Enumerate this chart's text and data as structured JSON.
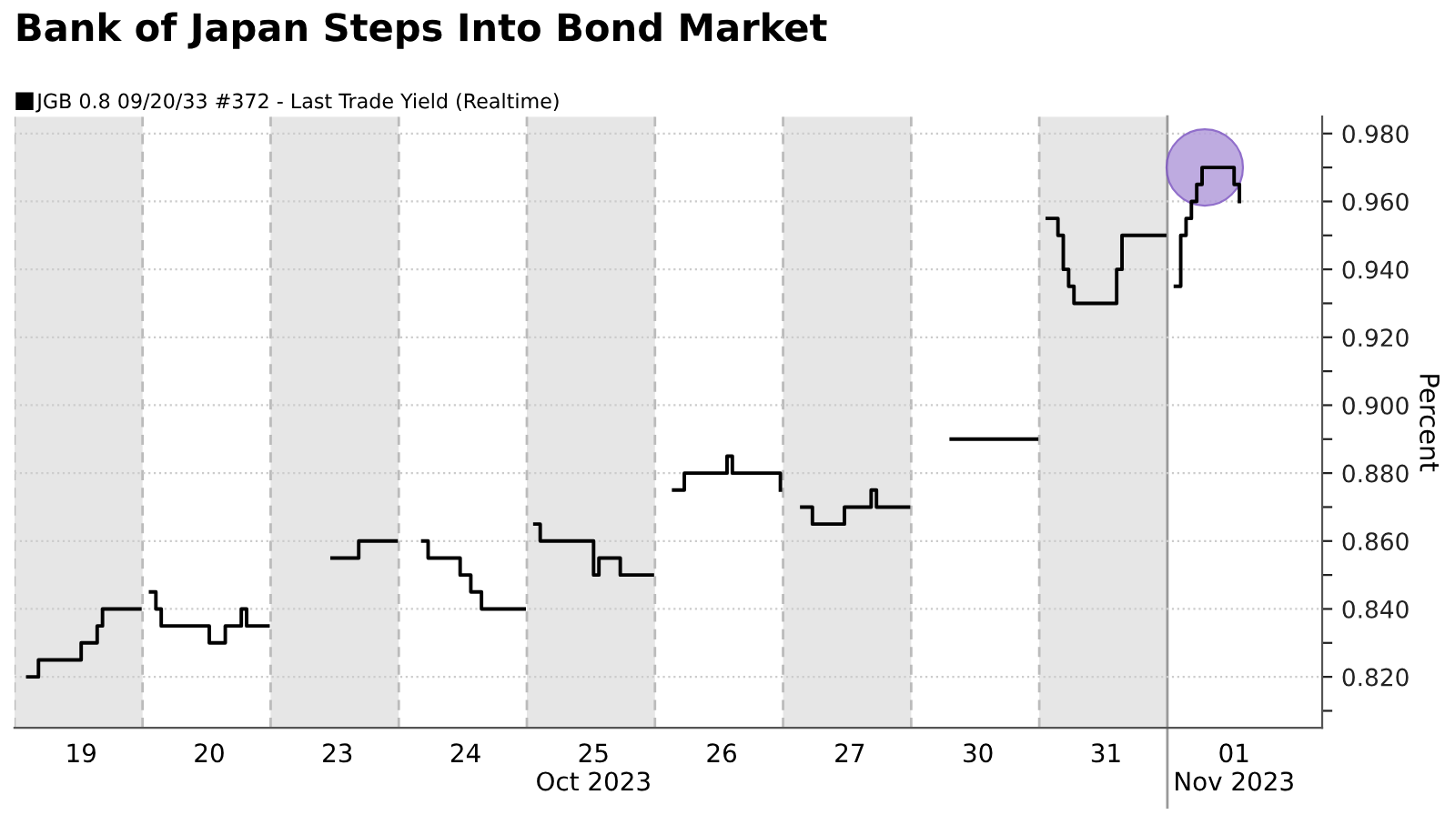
{
  "chart_data": {
    "type": "step",
    "title": "Bank of Japan Steps Into Bond Market",
    "ylabel": "Percent",
    "legend": "top left",
    "grid": "y",
    "line_style": "solid",
    "categories": [
      null,
      null,
      null,
      null,
      null,
      null,
      null,
      null,
      null,
      null,
      null,
      null,
      "19",
      null,
      null,
      null,
      null,
      null,
      null,
      null,
      null,
      null,
      null,
      null,
      null,
      null,
      null,
      null,
      null,
      null,
      null,
      null,
      null,
      null,
      null,
      null,
      "20",
      null,
      null,
      null,
      null,
      null,
      null,
      null,
      null,
      null,
      null,
      null,
      null,
      null,
      null,
      null,
      null,
      null,
      null,
      null,
      null,
      null,
      null,
      null,
      "23",
      null,
      null,
      null,
      null,
      null,
      null,
      null,
      null,
      null,
      null,
      null,
      null,
      null,
      null,
      null,
      null,
      null,
      null,
      null,
      null,
      null,
      null,
      null,
      "24",
      null,
      null,
      null,
      null,
      null,
      null,
      null,
      null,
      null,
      null,
      null,
      null,
      null,
      null,
      null,
      null,
      null,
      null,
      null,
      null,
      null,
      null,
      null,
      "25\nOct 2023",
      null,
      null,
      null,
      null,
      null,
      null,
      null,
      null,
      null,
      null,
      null,
      null,
      null,
      null,
      null,
      null,
      null,
      null,
      null,
      null,
      null,
      null,
      null,
      "26",
      null,
      null,
      null,
      null,
      null,
      null,
      null,
      null,
      null,
      null,
      null,
      null,
      null,
      null,
      null,
      null,
      null,
      null,
      null,
      null,
      null,
      null,
      null,
      "27",
      null,
      null,
      null,
      null,
      null,
      null,
      null,
      null,
      null,
      null,
      null,
      null,
      null,
      null,
      null,
      null,
      null,
      null,
      null,
      null,
      null,
      null,
      null,
      "30",
      null,
      null,
      null,
      null,
      null,
      null,
      null,
      null,
      null,
      null,
      null,
      null,
      null,
      null,
      null,
      null,
      null,
      null,
      null,
      null,
      null,
      null,
      null,
      "31",
      null,
      null,
      null,
      null,
      null,
      null,
      null,
      null,
      null,
      null,
      null,
      null,
      null,
      null,
      null,
      null,
      null,
      null,
      null,
      null,
      null,
      null,
      null,
      "01\nNov 2023",
      null,
      null,
      null,
      null,
      null,
      null,
      null,
      null,
      null,
      null,
      null,
      null,
      null,
      null,
      null,
      null
    ],
    "series": [
      {
        "name": "JGB 0.8 09/20/33 #372 - Last Trade Yield (Realtime)",
        "color": "#000000",
        "values": [
          null,
          null,
          0.82,
          0.82,
          0.825,
          0.825,
          0.825,
          0.825,
          0.825,
          0.825,
          0.825,
          0.825,
          0.83,
          0.83,
          0.83,
          0.835,
          0.84,
          0.84,
          0.84,
          0.84,
          0.84,
          0.84,
          0.84,
          0.84,
          null,
          0.845,
          0.84,
          0.835,
          0.835,
          0.835,
          0.835,
          0.835,
          0.835,
          0.835,
          0.835,
          0.835,
          0.83,
          0.83,
          0.83,
          0.835,
          0.835,
          0.835,
          0.84,
          0.835,
          0.835,
          0.835,
          0.835,
          0.835,
          null,
          null,
          null,
          null,
          null,
          null,
          null,
          null,
          null,
          null,
          null,
          0.855,
          0.855,
          0.855,
          0.855,
          0.855,
          0.86,
          0.86,
          0.86,
          0.86,
          0.86,
          0.86,
          0.86,
          0.86,
          null,
          null,
          null,
          null,
          0.86,
          0.855,
          0.855,
          0.855,
          0.855,
          0.855,
          0.855,
          0.85,
          0.85,
          0.845,
          0.845,
          0.84,
          0.84,
          0.84,
          0.84,
          0.84,
          0.84,
          0.84,
          0.84,
          0.84,
          null,
          0.865,
          0.86,
          0.86,
          0.86,
          0.86,
          0.86,
          0.86,
          0.86,
          0.86,
          0.86,
          0.86,
          0.85,
          0.855,
          0.855,
          0.855,
          0.855,
          0.85,
          0.85,
          0.85,
          0.85,
          0.85,
          0.85,
          0.85,
          null,
          null,
          null,
          0.875,
          0.875,
          0.88,
          0.88,
          0.88,
          0.88,
          0.88,
          0.88,
          0.88,
          0.88,
          0.885,
          0.88,
          0.88,
          0.88,
          0.88,
          0.88,
          0.88,
          0.88,
          0.88,
          0.88,
          0.875,
          null,
          null,
          null,
          0.87,
          0.87,
          0.865,
          0.865,
          0.865,
          0.865,
          0.865,
          0.865,
          0.87,
          0.87,
          0.87,
          0.87,
          0.87,
          0.875,
          0.87,
          0.87,
          0.87,
          0.87,
          0.87,
          0.87,
          0.87,
          null,
          null,
          null,
          null,
          null,
          null,
          null,
          0.89,
          0.89,
          0.89,
          0.89,
          0.89,
          0.89,
          0.89,
          0.89,
          0.89,
          0.89,
          0.89,
          0.89,
          0.89,
          0.89,
          0.89,
          0.89,
          0.89,
          null,
          0.955,
          0.955,
          0.95,
          0.94,
          0.935,
          0.93,
          0.93,
          0.93,
          0.93,
          0.93,
          0.93,
          0.93,
          0.93,
          0.94,
          0.95,
          0.95,
          0.95,
          0.95,
          0.95,
          0.95,
          0.95,
          0.95,
          0.95,
          null,
          0.935,
          0.95,
          0.955,
          0.96,
          0.965,
          0.97,
          0.97,
          0.97,
          0.97,
          0.97,
          0.97,
          0.965,
          0.96,
          null,
          null,
          null,
          null,
          null,
          null,
          null,
          null,
          null,
          null,
          null,
          null,
          null,
          null,
          null
        ]
      }
    ],
    "ylim": [
      0.805,
      0.985
    ],
    "yticks": [
      {
        "value": 0.81,
        "label": null
      },
      {
        "value": 0.82,
        "label": "0.820"
      },
      {
        "value": 0.83,
        "label": null
      },
      {
        "value": 0.84,
        "label": "0.840"
      },
      {
        "value": 0.85,
        "label": null
      },
      {
        "value": 0.86,
        "label": "0.860"
      },
      {
        "value": 0.87,
        "label": null
      },
      {
        "value": 0.88,
        "label": "0.880"
      },
      {
        "value": 0.89,
        "label": null
      },
      {
        "value": 0.9,
        "label": "0.900"
      },
      {
        "value": 0.91,
        "label": null
      },
      {
        "value": 0.92,
        "label": "0.920"
      },
      {
        "value": 0.93,
        "label": null
      },
      {
        "value": 0.94,
        "label": "0.940"
      },
      {
        "value": 0.95,
        "label": null
      },
      {
        "value": 0.96,
        "label": "0.960"
      },
      {
        "value": 0.97,
        "label": null
      },
      {
        "value": 0.98,
        "label": "0.980"
      }
    ]
  }
}
